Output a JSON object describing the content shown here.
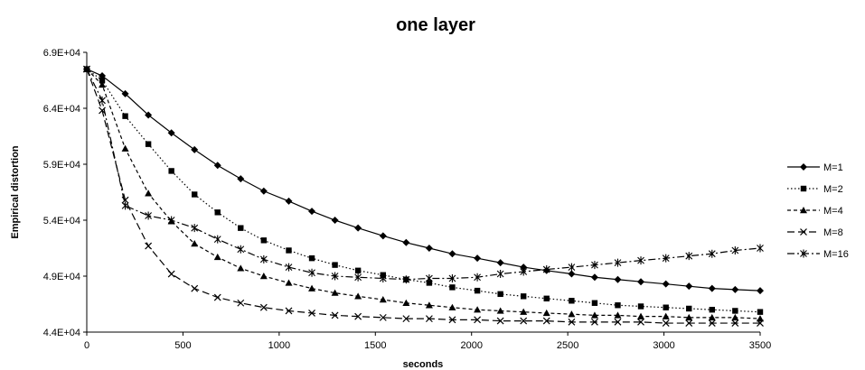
{
  "chart_data": {
    "type": "line",
    "title": "one layer",
    "xlabel": "seconds",
    "ylabel": "Empirical distortion",
    "xlim": [
      0,
      3500
    ],
    "ylim": [
      44000,
      69000
    ],
    "xticks": [
      "0",
      "500",
      "1000",
      "1500",
      "2000",
      "2500",
      "3000",
      "3500"
    ],
    "yticks": [
      "4.4E+04",
      "4.9E+04",
      "5.4E+04",
      "5.9E+04",
      "6.4E+04",
      "6.9E+04"
    ],
    "grid": false,
    "legend_position": "right",
    "series": [
      {
        "name": "M=1",
        "line_style": "solid",
        "marker": "diamond",
        "x": [
          0,
          80,
          200,
          320,
          440,
          560,
          680,
          800,
          920,
          1050,
          1170,
          1290,
          1410,
          1540,
          1660,
          1780,
          1900,
          2030,
          2150,
          2270,
          2390,
          2520,
          2640,
          2760,
          2880,
          3010,
          3130,
          3250,
          3370,
          3500
        ],
        "y": [
          67500,
          66900,
          65300,
          63400,
          61800,
          60300,
          58900,
          57700,
          56600,
          55700,
          54800,
          54000,
          53300,
          52600,
          52000,
          51500,
          51000,
          50600,
          50200,
          49800,
          49500,
          49200,
          48900,
          48700,
          48500,
          48300,
          48100,
          47900,
          47800,
          47700
        ]
      },
      {
        "name": "M=2",
        "line_style": "dotted",
        "marker": "square",
        "x": [
          0,
          80,
          200,
          320,
          440,
          560,
          680,
          800,
          920,
          1050,
          1170,
          1290,
          1410,
          1540,
          1660,
          1780,
          1900,
          2030,
          2150,
          2270,
          2390,
          2520,
          2640,
          2760,
          2880,
          3010,
          3130,
          3250,
          3370,
          3500
        ],
        "y": [
          67500,
          66500,
          63300,
          60800,
          58400,
          56300,
          54700,
          53300,
          52200,
          51300,
          50600,
          50000,
          49500,
          49100,
          48700,
          48400,
          48000,
          47700,
          47400,
          47200,
          47000,
          46800,
          46600,
          46400,
          46300,
          46200,
          46100,
          46000,
          45900,
          45800
        ]
      },
      {
        "name": "M=4",
        "line_style": "short-dash",
        "marker": "triangle",
        "x": [
          0,
          80,
          200,
          320,
          440,
          560,
          680,
          800,
          920,
          1050,
          1170,
          1290,
          1410,
          1540,
          1660,
          1780,
          1900,
          2030,
          2150,
          2270,
          2390,
          2520,
          2640,
          2760,
          2880,
          3010,
          3130,
          3250,
          3370,
          3500
        ],
        "y": [
          67500,
          66100,
          60400,
          56400,
          53900,
          51900,
          50700,
          49700,
          49000,
          48400,
          47900,
          47500,
          47200,
          46900,
          46600,
          46400,
          46200,
          46000,
          45900,
          45800,
          45700,
          45600,
          45500,
          45500,
          45400,
          45400,
          45300,
          45300,
          45300,
          45200
        ]
      },
      {
        "name": "M=8",
        "line_style": "long-dash",
        "marker": "x",
        "x": [
          0,
          80,
          200,
          320,
          440,
          560,
          680,
          800,
          920,
          1050,
          1170,
          1290,
          1410,
          1540,
          1660,
          1780,
          1900,
          2030,
          2150,
          2270,
          2390,
          2520,
          2640,
          2760,
          2880,
          3010,
          3130,
          3250,
          3370,
          3500
        ],
        "y": [
          67500,
          63800,
          55800,
          51700,
          49200,
          47900,
          47100,
          46600,
          46200,
          45900,
          45700,
          45500,
          45400,
          45300,
          45200,
          45200,
          45100,
          45100,
          45000,
          45000,
          45000,
          44900,
          44900,
          44900,
          44900,
          44800,
          44800,
          44800,
          44800,
          44800
        ]
      },
      {
        "name": "M=16",
        "line_style": "dash-dot",
        "marker": "asterisk",
        "x": [
          0,
          80,
          200,
          320,
          440,
          560,
          680,
          800,
          920,
          1050,
          1170,
          1290,
          1410,
          1540,
          1660,
          1780,
          1900,
          2030,
          2150,
          2270,
          2390,
          2520,
          2640,
          2760,
          2880,
          3010,
          3130,
          3250,
          3370,
          3500
        ],
        "y": [
          67500,
          64700,
          55300,
          54400,
          54000,
          53300,
          52300,
          51400,
          50500,
          49800,
          49300,
          49000,
          48900,
          48800,
          48700,
          48800,
          48800,
          48900,
          49200,
          49400,
          49600,
          49800,
          50000,
          50200,
          50400,
          50600,
          50800,
          51000,
          51300,
          51500
        ]
      }
    ]
  }
}
